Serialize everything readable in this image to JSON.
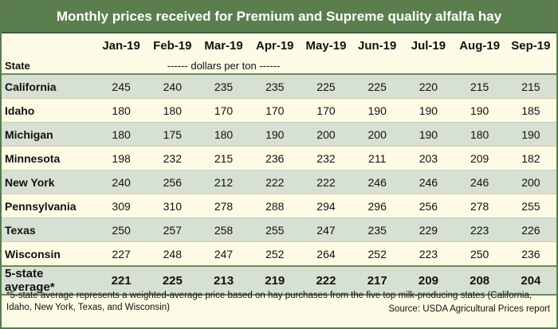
{
  "title": "Monthly prices received for Premium and Supreme quality alfalfa hay",
  "chart_data": {
    "type": "table",
    "title": "Monthly prices received for Premium and Supreme quality alfalfa hay",
    "row_header": "State",
    "units": "------ dollars per ton ------",
    "columns": [
      "Jan-19",
      "Feb-19",
      "Mar-19",
      "Apr-19",
      "May-19",
      "Jun-19",
      "Jul-19",
      "Aug-19",
      "Sep-19"
    ],
    "rows": [
      {
        "state": "California",
        "values": [
          245,
          240,
          235,
          235,
          225,
          225,
          220,
          215,
          215
        ]
      },
      {
        "state": "Idaho",
        "values": [
          180,
          180,
          170,
          170,
          170,
          190,
          190,
          190,
          185
        ]
      },
      {
        "state": "Michigan",
        "values": [
          180,
          175,
          180,
          190,
          200,
          200,
          190,
          180,
          190
        ]
      },
      {
        "state": "Minnesota",
        "values": [
          198,
          232,
          215,
          236,
          232,
          211,
          203,
          209,
          182
        ]
      },
      {
        "state": "New York",
        "values": [
          240,
          256,
          212,
          222,
          222,
          246,
          246,
          246,
          200
        ]
      },
      {
        "state": "Pennsylvania",
        "values": [
          309,
          310,
          278,
          288,
          294,
          296,
          256,
          278,
          255
        ]
      },
      {
        "state": "Texas",
        "values": [
          250,
          257,
          258,
          255,
          247,
          235,
          229,
          223,
          226
        ]
      },
      {
        "state": "Wisconsin",
        "values": [
          227,
          248,
          247,
          252,
          264,
          252,
          223,
          250,
          236
        ]
      }
    ],
    "average": {
      "state": "5-state average*",
      "values": [
        221,
        225,
        213,
        219,
        222,
        217,
        209,
        208,
        204
      ]
    }
  },
  "footnote": "*5-state average represents  a weighted-average price based on hay purchases from the five top milk-producing states (California, Idaho, New York, Texas, and Wisconsin)",
  "source": "Source: USDA Agricultural Prices report",
  "colors": {
    "header_green": "#5b7e4e",
    "row_shade": "#d6e0d3",
    "row_plain": "#fdfbe6"
  }
}
